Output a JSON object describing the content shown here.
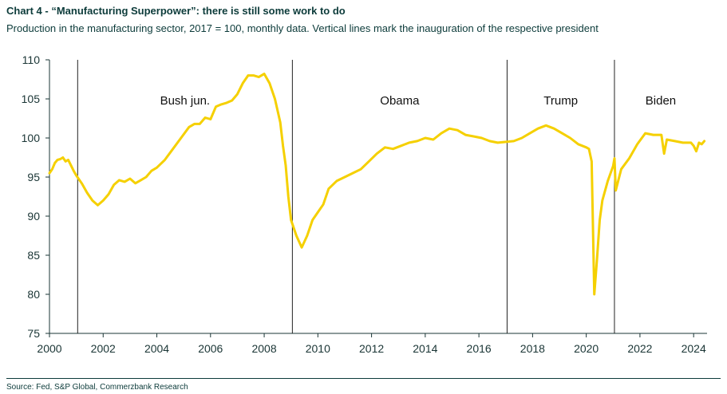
{
  "title": "Chart 4 - “Manufacturing Superpower”: there is still some work to do",
  "subtitle": "Production in the manufacturing sector, 2017 = 100, monthly data. Vertical lines mark the inauguration of the respective president",
  "source": "Source: Fed, S&P Global, Commerzbank Research",
  "chart_data": {
    "type": "line",
    "title": "Chart 4 - “Manufacturing Superpower”: there is still some work to do",
    "subtitle": "Production in the manufacturing sector, 2017 = 100, monthly data. Vertical lines mark the inauguration of the respective president",
    "xlim": [
      2000,
      2024.5
    ],
    "ylim": [
      75,
      110
    ],
    "x_ticks": [
      2000,
      2002,
      2004,
      2006,
      2008,
      2010,
      2012,
      2014,
      2016,
      2018,
      2020,
      2022,
      2024
    ],
    "y_ticks": [
      75,
      80,
      85,
      90,
      95,
      100,
      105,
      110
    ],
    "grid": false,
    "line_color": "#f5d000",
    "vertical_lines": [
      {
        "x": 2001.05,
        "label": "Bush jun."
      },
      {
        "x": 2009.05,
        "label": "Obama"
      },
      {
        "x": 2017.05,
        "label": "Trump"
      },
      {
        "x": 2021.05,
        "label": "Biden"
      }
    ],
    "label_y": 104.3,
    "series": [
      {
        "x": [
          2000.0,
          2000.1,
          2000.2,
          2000.3,
          2000.4,
          2000.5,
          2000.6,
          2000.7,
          2000.8,
          2000.9,
          2001.0,
          2001.2,
          2001.4,
          2001.6,
          2001.8,
          2002.0,
          2002.2,
          2002.4,
          2002.6,
          2002.8,
          2003.0,
          2003.2,
          2003.4,
          2003.6,
          2003.8,
          2004.0,
          2004.3,
          2004.6,
          2004.9,
          2005.2,
          2005.4,
          2005.6,
          2005.8,
          2006.0,
          2006.2,
          2006.4,
          2006.6,
          2006.8,
          2007.0,
          2007.2,
          2007.4,
          2007.6,
          2007.8,
          2008.0,
          2008.2,
          2008.4,
          2008.6,
          2008.7,
          2008.8,
          2008.9,
          2009.0,
          2009.2,
          2009.4,
          2009.6,
          2009.8,
          2010.0,
          2010.2,
          2010.4,
          2010.7,
          2011.0,
          2011.3,
          2011.6,
          2011.9,
          2012.2,
          2012.5,
          2012.8,
          2013.1,
          2013.4,
          2013.7,
          2014.0,
          2014.3,
          2014.6,
          2014.9,
          2015.2,
          2015.5,
          2015.8,
          2016.1,
          2016.4,
          2016.7,
          2017.0,
          2017.3,
          2017.6,
          2017.9,
          2018.2,
          2018.5,
          2018.8,
          2019.1,
          2019.4,
          2019.7,
          2020.0,
          2020.1,
          2020.2,
          2020.3,
          2020.4,
          2020.5,
          2020.6,
          2020.8,
          2021.0,
          2021.05,
          2021.1,
          2021.3,
          2021.6,
          2021.9,
          2022.2,
          2022.5,
          2022.8,
          2022.9,
          2023.0,
          2023.3,
          2023.6,
          2023.9,
          2024.0,
          2024.1,
          2024.2,
          2024.3,
          2024.4
        ],
        "y": [
          95.5,
          96.0,
          96.8,
          97.2,
          97.3,
          97.5,
          97.0,
          97.2,
          96.5,
          95.8,
          95.2,
          94.2,
          93.0,
          92.0,
          91.4,
          92.0,
          92.8,
          94.0,
          94.6,
          94.4,
          94.8,
          94.2,
          94.6,
          95.0,
          95.8,
          96.2,
          97.2,
          98.6,
          100.0,
          101.4,
          101.8,
          101.8,
          102.6,
          102.4,
          104.0,
          104.3,
          104.5,
          104.8,
          105.6,
          107.0,
          108.0,
          108.0,
          107.8,
          108.2,
          107.0,
          105.0,
          102.0,
          99.0,
          96.5,
          92.5,
          89.5,
          87.5,
          86.0,
          87.5,
          89.5,
          90.5,
          91.5,
          93.5,
          94.5,
          95.0,
          95.5,
          96.0,
          97.0,
          98.0,
          98.8,
          98.6,
          99.0,
          99.4,
          99.6,
          100.0,
          99.8,
          100.6,
          101.2,
          101.0,
          100.4,
          100.2,
          100.0,
          99.6,
          99.4,
          99.5,
          99.6,
          100.0,
          100.6,
          101.2,
          101.6,
          101.2,
          100.6,
          100.0,
          99.2,
          98.8,
          98.6,
          97.0,
          80.0,
          84.5,
          89.5,
          92.0,
          94.5,
          96.4,
          97.4,
          93.3,
          96.0,
          97.4,
          99.2,
          100.6,
          100.4,
          100.4,
          98.0,
          99.8,
          99.6,
          99.4,
          99.4,
          99.0,
          98.3,
          99.4,
          99.2,
          99.6
        ]
      }
    ]
  }
}
